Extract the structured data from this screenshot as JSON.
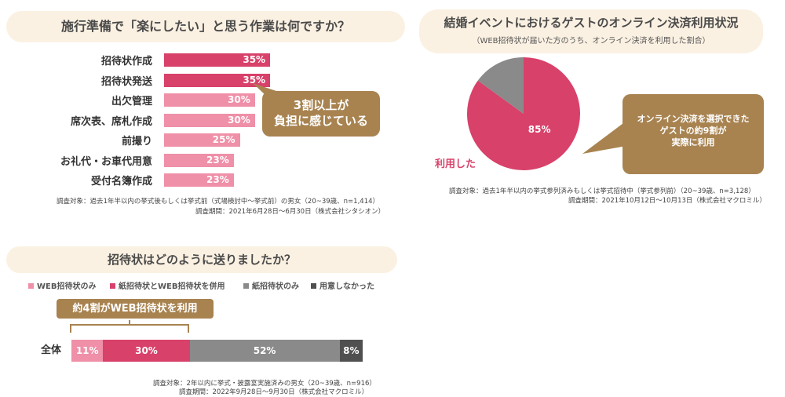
{
  "chart_data": [
    {
      "type": "bar",
      "title": "施行準備で「楽にしたい」と思う作業は何ですか？",
      "categories": [
        "招待状作成",
        "招待状発送",
        "出欠管理",
        "席次表、席札作成",
        "前撮り",
        "お礼代・お車代用意",
        "受付名簿作成"
      ],
      "values": [
        35,
        35,
        30,
        30,
        25,
        23,
        23
      ],
      "value_labels": [
        "35%",
        "35%",
        "30%",
        "30%",
        "25%",
        "23%",
        "23%"
      ],
      "highlight_count": 2,
      "callout": [
        "3割以上が",
        "負担に感じている"
      ],
      "notes": [
        "調査対象：過去1年半以内の挙式後もしくは挙式前（式場検討中～挙式前）の男女（20~39歳、n=1,414）",
        "調査期間：2021年6月28日～6月30日（株式会社シタシオン）"
      ]
    },
    {
      "type": "pie",
      "title": "結婚イベントにおけるゲストのオンライン決済利用状況",
      "subtitle": "（WEB招待状が届いた方のうち、オンライン決済を利用した割合）",
      "slices": [
        {
          "label": "利用した",
          "value": 85,
          "value_label": "85%",
          "color": "#d8416a"
        },
        {
          "label": "",
          "value": 15,
          "value_label": "",
          "color": "#8a8a8a"
        }
      ],
      "callout": [
        "オンライン決済を選択できた",
        "ゲストの約9割が",
        "実際に利用"
      ],
      "notes": [
        "調査対象：過去1年半以内の挙式参列済みもしくは挙式招待中（挙式参列前）（20~39歳、n=3,128）",
        "調査期間：2021年10月12日～10月13日（株式会社マクロミル）"
      ]
    },
    {
      "type": "bar",
      "stacked": true,
      "title": "招待状はどのように送りましたか？",
      "categories": [
        "全体"
      ],
      "series": [
        {
          "name": "WEB招待状のみ",
          "values": [
            11
          ],
          "label": "11%",
          "color": "#ef8fa8"
        },
        {
          "name": "紙招待状とWEB招待状を併用",
          "values": [
            30
          ],
          "label": "30%",
          "color": "#d8416a"
        },
        {
          "name": "紙招待状のみ",
          "values": [
            52
          ],
          "label": "52%",
          "color": "#8a8a8a"
        },
        {
          "name": "用意しなかった",
          "values": [
            8
          ],
          "label": "8%",
          "color": "#505050"
        }
      ],
      "callout": "約4割がWEB招待状を利用",
      "notes": [
        "調査対象：2年以内に挙式・披露宴実施済みの男女（20~39歳、n=916）",
        "調査期間：2022年9月28日～9月30日（株式会社マクロミル）"
      ]
    }
  ],
  "colors": {
    "accent_pink": "#d8416a",
    "light_pink": "#ef8fa8",
    "gray": "#8a8a8a",
    "dark_gray": "#505050",
    "gold": "#a88350",
    "title_bg": "#fbf1e2"
  }
}
